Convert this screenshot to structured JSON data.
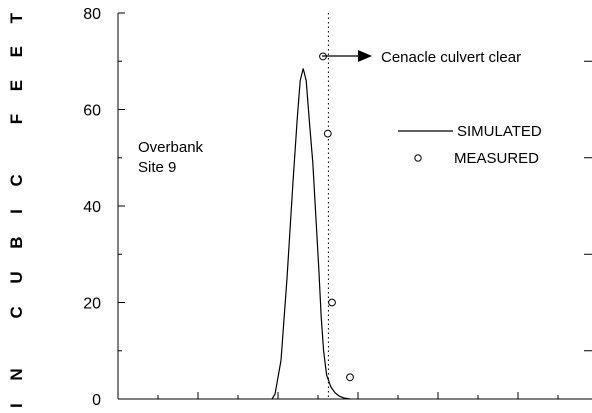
{
  "chart_data": {
    "type": "line",
    "ylabel": "IN CUBIC FEET",
    "ylim": [
      0,
      80
    ],
    "yticks": [
      "0",
      "20",
      "40",
      "60",
      "80"
    ],
    "site_label_line1": "Overbank",
    "site_label_line2": "Site 9",
    "annotation": "Cenacle culvert clear",
    "legend": {
      "position": "right",
      "simulated": "SIMULATED",
      "measured": "MEASURED"
    },
    "series": [
      {
        "name": "SIMULATED",
        "style": "line",
        "x": [
          0,
          0.05,
          0.15,
          0.25,
          0.35,
          0.42,
          0.47,
          0.52,
          0.57,
          0.62,
          0.68,
          0.73,
          0.78,
          0.82,
          0.86,
          0.91,
          0.98,
          1.05,
          1.12,
          1.2,
          1.3
        ],
        "y": [
          0,
          1,
          8,
          25,
          45,
          58,
          66,
          68.5,
          66,
          58,
          49,
          38,
          27,
          17,
          10,
          5,
          2.5,
          1.3,
          0.6,
          0.2,
          0
        ]
      },
      {
        "name": "MEASURED",
        "style": "markers",
        "x": [
          0.85,
          0.93,
          1.0,
          1.3
        ],
        "y": [
          71,
          55,
          20,
          4.5
        ]
      }
    ],
    "vertical_line_x": 0.94
  }
}
